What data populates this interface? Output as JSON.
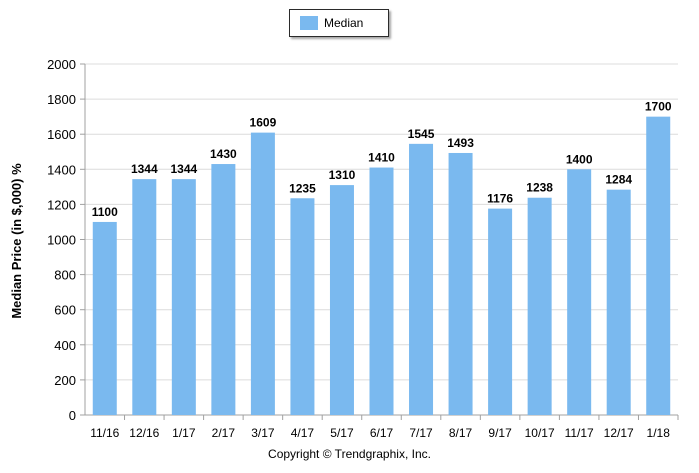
{
  "legend": {
    "label": "Median",
    "color": "#7ab9ef"
  },
  "copyright": "Copyright © Trendgraphix, Inc.",
  "chart_data": {
    "type": "bar",
    "title": "",
    "xlabel": "",
    "ylabel": "Median Price (in $,000) %",
    "ylim": [
      0,
      2000
    ],
    "yticks": [
      0,
      200,
      400,
      600,
      800,
      1000,
      1200,
      1400,
      1600,
      1800,
      2000
    ],
    "grid": true,
    "legend_position": "top-center",
    "categories": [
      "11/16",
      "12/16",
      "1/17",
      "2/17",
      "3/17",
      "4/17",
      "5/17",
      "6/17",
      "7/17",
      "8/17",
      "9/17",
      "10/17",
      "11/17",
      "12/17",
      "1/18"
    ],
    "series": [
      {
        "name": "Median",
        "values": [
          1100,
          1344,
          1344,
          1430,
          1609,
          1235,
          1310,
          1410,
          1545,
          1493,
          1176,
          1238,
          1400,
          1284,
          1700
        ]
      }
    ]
  }
}
